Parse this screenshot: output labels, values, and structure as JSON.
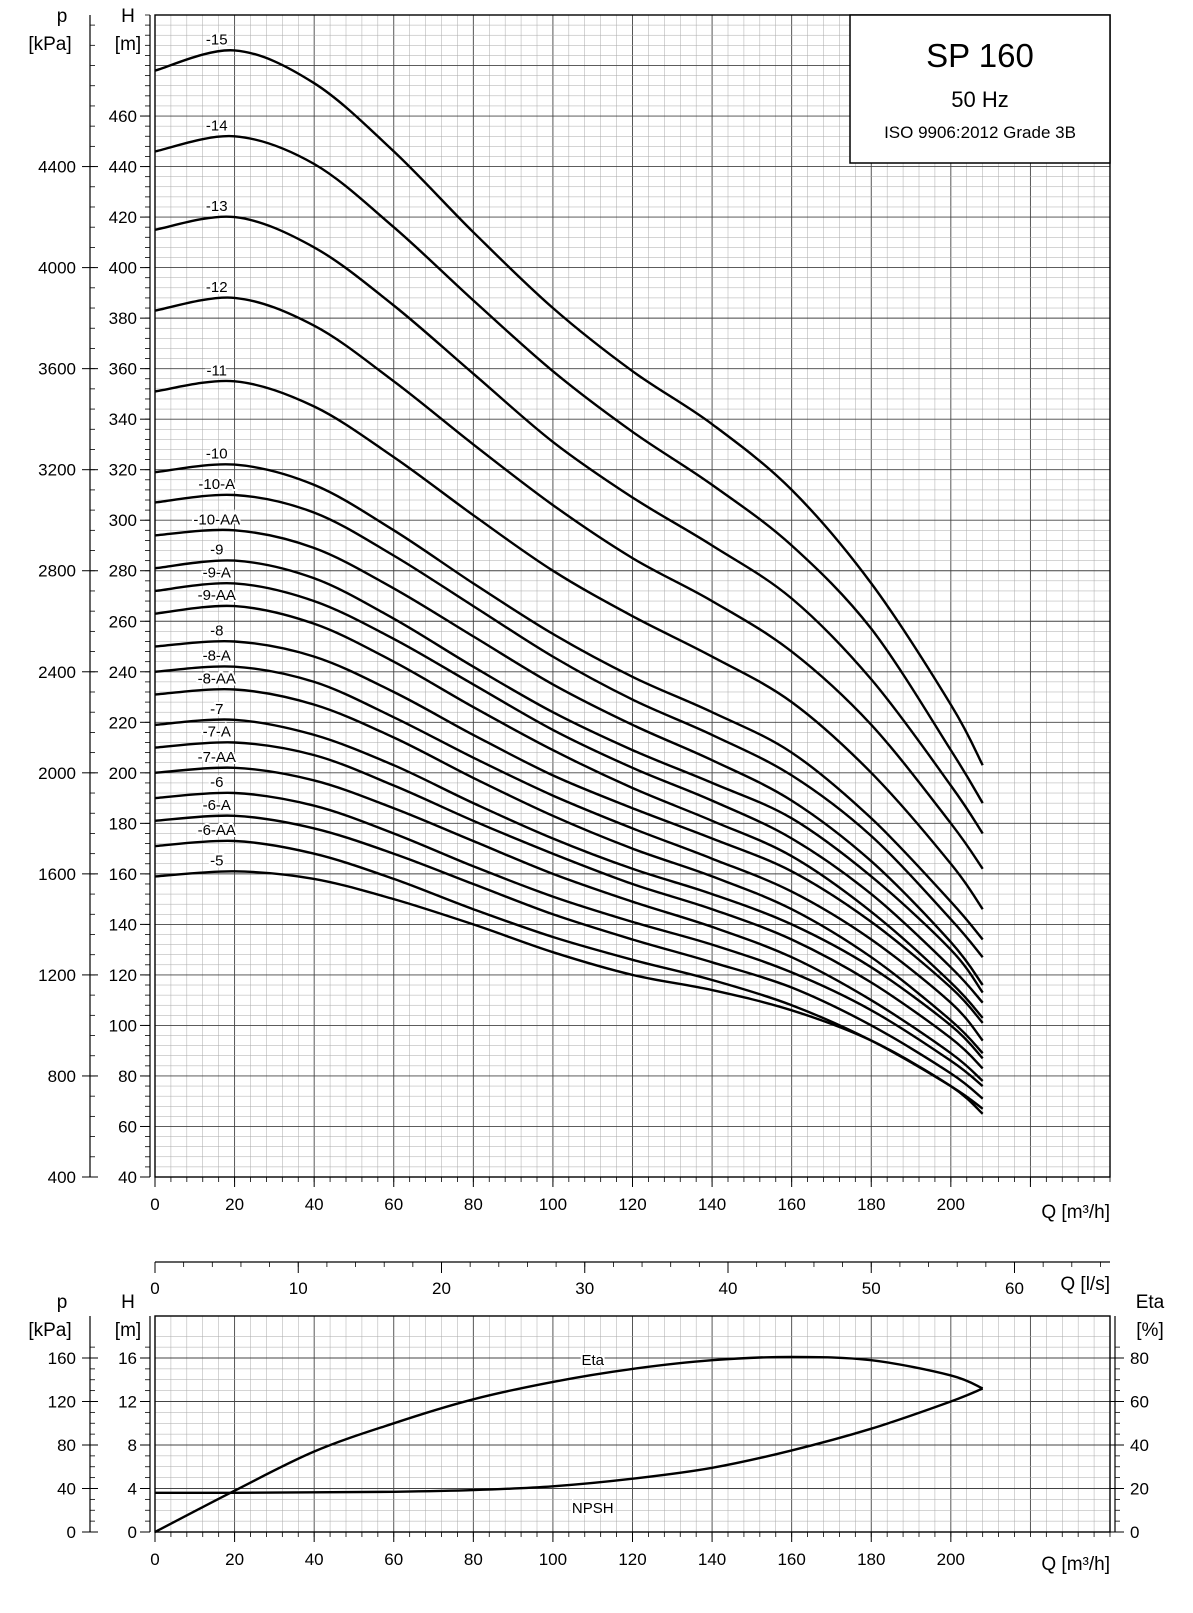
{
  "title_box": {
    "model": "SP 160",
    "frequency": "50 Hz",
    "standard": "ISO 9906:2012 Grade 3B"
  },
  "axes": {
    "p_kpa_label": "p",
    "p_kpa_unit": "[kPa]",
    "h_label": "H",
    "h_unit": "[m]",
    "q_m3h_label": "Q [m³/h]",
    "q_ls_label": "Q [l/s]",
    "eta_label": "Eta",
    "eta_unit": "[%]"
  },
  "chart_data": [
    {
      "type": "line",
      "name": "head-curves",
      "xlabel": "Q [m³/h]",
      "ylabel": "H [m]",
      "xlim": [
        0,
        240
      ],
      "ylim": [
        40,
        500
      ],
      "secondary_y": {
        "label": "p [kPa]",
        "ticks": [
          400,
          800,
          1200,
          1600,
          2000,
          2400,
          2800,
          3200,
          3600,
          4000,
          4400
        ]
      },
      "secondary_x": {
        "label": "Q [l/s]",
        "lim": [
          0,
          66.67
        ],
        "ticks": [
          0,
          10,
          20,
          30,
          40,
          50,
          60
        ]
      },
      "x_ticks": [
        0,
        20,
        40,
        60,
        80,
        100,
        120,
        140,
        160,
        180,
        200
      ],
      "y_ticks": [
        40,
        60,
        80,
        100,
        120,
        140,
        160,
        180,
        200,
        220,
        240,
        260,
        280,
        300,
        320,
        340,
        360,
        380,
        400,
        420,
        440,
        460
      ],
      "grid": true,
      "series": [
        {
          "name": "-15",
          "x": [
            0,
            20,
            40,
            60,
            80,
            100,
            120,
            140,
            160,
            180,
            200,
            208
          ],
          "y": [
            478,
            486,
            473,
            446,
            414,
            384,
            359,
            338,
            312,
            275,
            227,
            203
          ]
        },
        {
          "name": "-14",
          "x": [
            0,
            20,
            40,
            60,
            80,
            100,
            120,
            140,
            160,
            180,
            200,
            208
          ],
          "y": [
            446,
            452,
            441,
            416,
            387,
            359,
            335,
            314,
            290,
            257,
            209,
            188
          ]
        },
        {
          "name": "-13",
          "x": [
            0,
            20,
            40,
            60,
            80,
            100,
            120,
            140,
            160,
            180,
            200,
            208
          ],
          "y": [
            415,
            420,
            408,
            385,
            358,
            331,
            309,
            290,
            269,
            237,
            195,
            176
          ]
        },
        {
          "name": "-12",
          "x": [
            0,
            20,
            40,
            60,
            80,
            100,
            120,
            140,
            160,
            180,
            200,
            208
          ],
          "y": [
            383,
            388,
            377,
            355,
            330,
            306,
            285,
            268,
            248,
            219,
            180,
            162
          ]
        },
        {
          "name": "-11",
          "x": [
            0,
            20,
            40,
            60,
            80,
            100,
            120,
            140,
            160,
            180,
            200,
            208
          ],
          "y": [
            351,
            355,
            345,
            325,
            302,
            280,
            262,
            246,
            228,
            200,
            164,
            146
          ]
        },
        {
          "name": "-10",
          "x": [
            0,
            20,
            40,
            60,
            80,
            100,
            120,
            140,
            160,
            180,
            200,
            208
          ],
          "y": [
            319,
            322,
            314,
            296,
            275,
            255,
            238,
            224,
            208,
            182,
            149,
            134
          ]
        },
        {
          "name": "-10-A",
          "x": [
            0,
            20,
            40,
            60,
            80,
            100,
            120,
            140,
            160,
            180,
            200,
            208
          ],
          "y": [
            307,
            310,
            303,
            286,
            266,
            246,
            229,
            215,
            199,
            175,
            142,
            127
          ]
        },
        {
          "name": "-10-AA",
          "x": [
            0,
            20,
            40,
            60,
            80,
            100,
            120,
            140,
            160,
            180,
            200,
            208
          ],
          "y": [
            294,
            296,
            289,
            273,
            254,
            235,
            219,
            205,
            189,
            165,
            133,
            116
          ]
        },
        {
          "name": "-9",
          "x": [
            0,
            20,
            40,
            60,
            80,
            100,
            120,
            140,
            160,
            180,
            200,
            208
          ],
          "y": [
            281,
            284,
            277,
            261,
            242,
            224,
            209,
            196,
            182,
            159,
            130,
            113
          ]
        },
        {
          "name": "-9-A",
          "x": [
            0,
            20,
            40,
            60,
            80,
            100,
            120,
            140,
            160,
            180,
            200,
            208
          ],
          "y": [
            272,
            275,
            268,
            253,
            235,
            217,
            202,
            189,
            174,
            152,
            123,
            109
          ]
        },
        {
          "name": "-9-AA",
          "x": [
            0,
            20,
            40,
            60,
            80,
            100,
            120,
            140,
            160,
            180,
            200,
            208
          ],
          "y": [
            263,
            266,
            259,
            244,
            226,
            209,
            194,
            181,
            167,
            145,
            117,
            103
          ]
        },
        {
          "name": "-8",
          "x": [
            0,
            20,
            40,
            60,
            80,
            100,
            120,
            140,
            160,
            180,
            200,
            208
          ],
          "y": [
            250,
            252,
            246,
            232,
            215,
            199,
            186,
            174,
            161,
            141,
            115,
            101
          ]
        },
        {
          "name": "-8-A",
          "x": [
            0,
            20,
            40,
            60,
            80,
            100,
            120,
            140,
            160,
            180,
            200,
            208
          ],
          "y": [
            240,
            242,
            236,
            222,
            206,
            191,
            178,
            166,
            153,
            134,
            109,
            94
          ]
        },
        {
          "name": "-8-AA",
          "x": [
            0,
            20,
            40,
            60,
            80,
            100,
            120,
            140,
            160,
            180,
            200,
            208
          ],
          "y": [
            231,
            233,
            227,
            214,
            198,
            183,
            170,
            159,
            146,
            127,
            102,
            89
          ]
        },
        {
          "name": "-7",
          "x": [
            0,
            20,
            40,
            60,
            80,
            100,
            120,
            140,
            160,
            180,
            200,
            208
          ],
          "y": [
            219,
            221,
            215,
            203,
            188,
            174,
            162,
            152,
            140,
            123,
            100,
            87
          ]
        },
        {
          "name": "-7-A",
          "x": [
            0,
            20,
            40,
            60,
            80,
            100,
            120,
            140,
            160,
            180,
            200,
            208
          ],
          "y": [
            210,
            212,
            207,
            195,
            181,
            168,
            156,
            146,
            134,
            117,
            95,
            83
          ]
        },
        {
          "name": "-7-AA",
          "x": [
            0,
            20,
            40,
            60,
            80,
            100,
            120,
            140,
            160,
            180,
            200,
            208
          ],
          "y": [
            200,
            202,
            197,
            186,
            173,
            160,
            149,
            139,
            127,
            110,
            89,
            78
          ]
        },
        {
          "name": "-6",
          "x": [
            0,
            20,
            40,
            60,
            80,
            100,
            120,
            140,
            160,
            180,
            200,
            208
          ],
          "y": [
            190,
            192,
            187,
            176,
            163,
            151,
            141,
            132,
            121,
            106,
            86,
            76
          ]
        },
        {
          "name": "-6-A",
          "x": [
            0,
            20,
            40,
            60,
            80,
            100,
            120,
            140,
            160,
            180,
            200,
            208
          ],
          "y": [
            181,
            183,
            178,
            168,
            156,
            144,
            134,
            125,
            115,
            100,
            81,
            71
          ]
        },
        {
          "name": "-6-AA",
          "x": [
            0,
            20,
            40,
            60,
            80,
            100,
            120,
            140,
            160,
            180,
            200,
            208
          ],
          "y": [
            171,
            173,
            168,
            158,
            146,
            135,
            126,
            118,
            108,
            94,
            76,
            67
          ]
        },
        {
          "name": "-5",
          "x": [
            0,
            20,
            40,
            60,
            80,
            100,
            120,
            140,
            160,
            180,
            200,
            208
          ],
          "y": [
            159,
            161,
            158,
            150,
            140,
            129,
            120,
            114,
            106,
            94,
            76,
            65
          ]
        }
      ]
    },
    {
      "type": "line",
      "name": "npsh-efficiency",
      "xlabel": "Q [m³/h]",
      "ylabel": "H [m]",
      "xlim": [
        0,
        240
      ],
      "ylim": [
        0,
        18
      ],
      "x_ticks": [
        0,
        20,
        40,
        60,
        80,
        100,
        120,
        140,
        160,
        180,
        200
      ],
      "y_ticks": [
        0,
        4,
        8,
        12,
        16
      ],
      "secondary_y_left": {
        "label": "p [kPa]",
        "ticks": [
          0,
          40,
          80,
          120,
          160
        ]
      },
      "secondary_y_right": {
        "label": "Eta [%]",
        "lim": [
          0,
          90
        ],
        "ticks": [
          0,
          20,
          40,
          60,
          80
        ]
      },
      "grid": true,
      "series": [
        {
          "name": "Eta",
          "axis": "right",
          "x": [
            0,
            20,
            40,
            60,
            80,
            100,
            120,
            140,
            160,
            180,
            200,
            208
          ],
          "y": [
            0,
            19,
            37,
            50,
            61,
            69,
            75,
            79,
            80.5,
            79,
            72,
            66
          ]
        },
        {
          "name": "NPSH",
          "axis": "left",
          "x": [
            0,
            20,
            40,
            60,
            80,
            100,
            120,
            140,
            160,
            180,
            200,
            208
          ],
          "y": [
            3.6,
            3.6,
            3.65,
            3.7,
            3.85,
            4.2,
            4.9,
            5.9,
            7.5,
            9.5,
            12,
            13.2
          ]
        }
      ]
    }
  ]
}
